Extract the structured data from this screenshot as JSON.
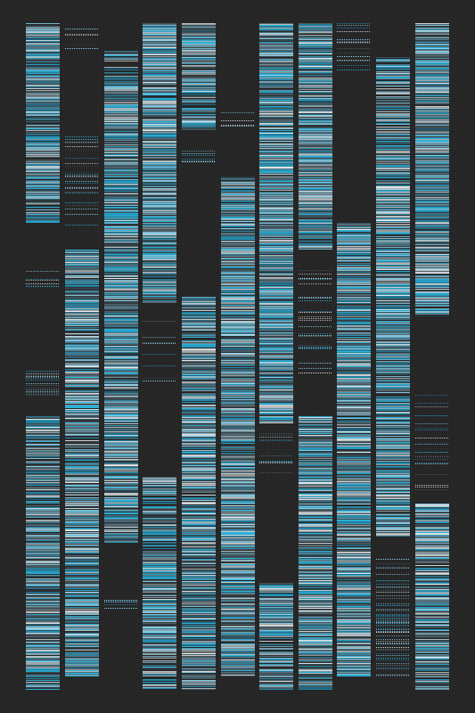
{
  "artwork": {
    "background_color": "#262626",
    "palette": {
      "cyan": "#2ab6e0",
      "deep_cyan": "#1f8fb8",
      "light_blue": "#8fd3ec",
      "pale": "#cfd8dc",
      "slate": "#5c7480",
      "steel": "#3f5964",
      "dark_slate": "#2f3f47",
      "white": "#e8eef0"
    },
    "strip_count": 12,
    "strips": [
      {
        "index": 0,
        "segments": [
          {
            "from": 0.0,
            "to": 0.3,
            "density": 0.95
          },
          {
            "from": 0.36,
            "to": 0.41,
            "density": 0.3
          },
          {
            "from": 0.52,
            "to": 0.56,
            "density": 0.3
          },
          {
            "from": 0.59,
            "to": 1.0,
            "density": 0.9
          }
        ]
      },
      {
        "index": 1,
        "segments": [
          {
            "from": 0.0,
            "to": 0.04,
            "density": 0.15
          },
          {
            "from": 0.17,
            "to": 0.33,
            "density": 0.2
          },
          {
            "from": 0.34,
            "to": 0.98,
            "density": 0.92
          }
        ]
      },
      {
        "index": 2,
        "segments": [
          {
            "from": 0.04,
            "to": 0.09,
            "density": 0.5
          },
          {
            "from": 0.09,
            "to": 0.78,
            "density": 0.95
          },
          {
            "from": 0.85,
            "to": 0.88,
            "density": 0.2
          }
        ]
      },
      {
        "index": 3,
        "segments": [
          {
            "from": 0.0,
            "to": 0.42,
            "density": 0.97
          },
          {
            "from": 0.44,
            "to": 0.54,
            "density": 0.2
          },
          {
            "from": 0.68,
            "to": 1.0,
            "density": 0.85
          }
        ]
      },
      {
        "index": 4,
        "segments": [
          {
            "from": 0.0,
            "to": 0.16,
            "density": 0.85
          },
          {
            "from": 0.18,
            "to": 0.21,
            "density": 0.3
          },
          {
            "from": 0.41,
            "to": 1.0,
            "density": 0.92
          }
        ]
      },
      {
        "index": 5,
        "segments": [
          {
            "from": 0.12,
            "to": 0.17,
            "density": 0.2
          },
          {
            "from": 0.23,
            "to": 0.98,
            "density": 0.94
          }
        ]
      },
      {
        "index": 6,
        "segments": [
          {
            "from": 0.0,
            "to": 0.6,
            "density": 0.96
          },
          {
            "from": 0.61,
            "to": 0.68,
            "density": 0.2
          },
          {
            "from": 0.84,
            "to": 1.0,
            "density": 0.85
          }
        ]
      },
      {
        "index": 7,
        "segments": [
          {
            "from": 0.0,
            "to": 0.34,
            "density": 0.95
          },
          {
            "from": 0.37,
            "to": 0.53,
            "density": 0.2
          },
          {
            "from": 0.59,
            "to": 1.0,
            "density": 0.94
          }
        ]
      },
      {
        "index": 8,
        "segments": [
          {
            "from": 0.0,
            "to": 0.08,
            "density": 0.25
          },
          {
            "from": 0.3,
            "to": 0.98,
            "density": 0.93
          }
        ]
      },
      {
        "index": 9,
        "segments": [
          {
            "from": 0.05,
            "to": 0.17,
            "density": 0.75
          },
          {
            "from": 0.17,
            "to": 0.77,
            "density": 0.96
          },
          {
            "from": 0.8,
            "to": 0.98,
            "density": 0.3
          }
        ]
      },
      {
        "index": 10,
        "segments": [
          {
            "from": 0.0,
            "to": 0.44,
            "density": 0.96
          },
          {
            "from": 0.54,
            "to": 0.7,
            "density": 0.2
          },
          {
            "from": 0.72,
            "to": 1.0,
            "density": 0.9
          }
        ]
      },
      {
        "index": 11,
        "segments": []
      }
    ]
  }
}
